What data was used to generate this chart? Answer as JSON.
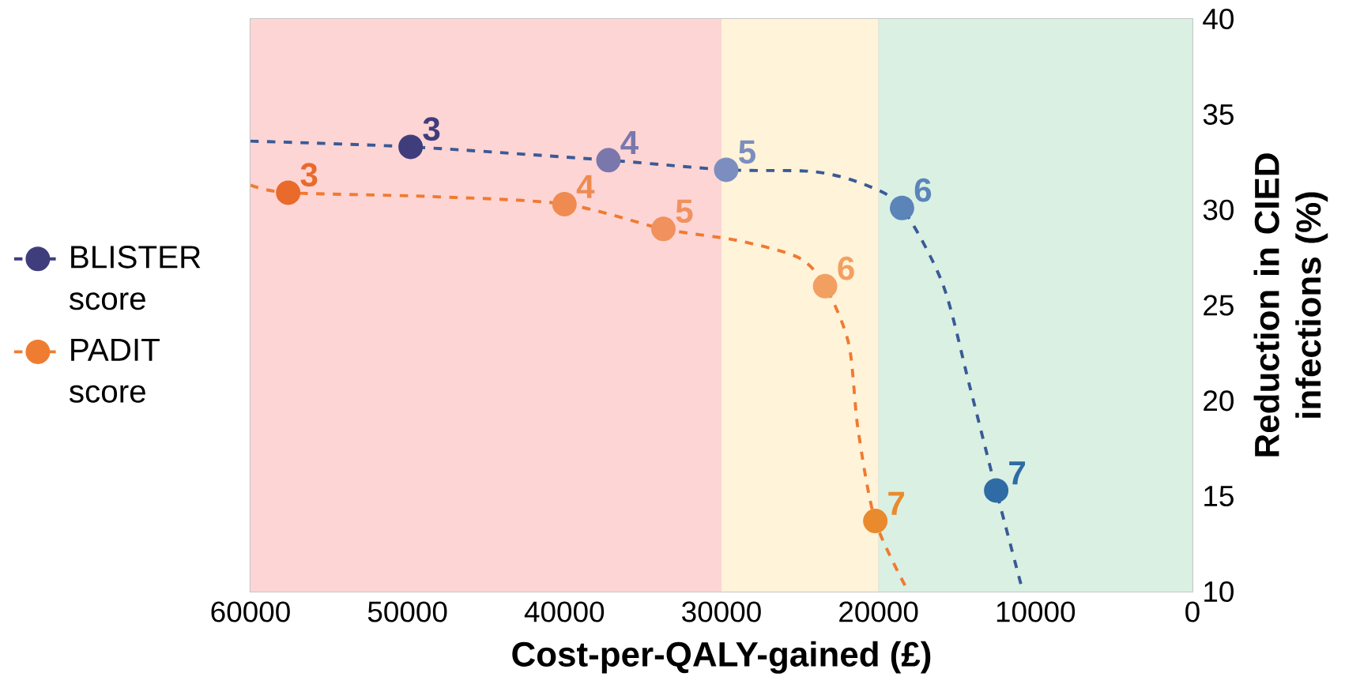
{
  "chart_data": {
    "type": "line",
    "xlabel": "Cost-per-QALY-gained  (£)",
    "ylabel": "Reduction in CIED infections (%)",
    "xlim": [
      60000,
      0
    ],
    "xticks": [
      60000,
      50000,
      40000,
      30000,
      20000,
      10000,
      0
    ],
    "ylim": [
      10,
      40
    ],
    "yticks": [
      10,
      15,
      20,
      25,
      30,
      35,
      40
    ],
    "grid": true,
    "legend": "left",
    "line_style": "dashed",
    "marker": "circle",
    "bands": [
      {
        "axis": "x",
        "from": 60000,
        "to": 30000,
        "color": "#fdd5d5"
      },
      {
        "axis": "x",
        "from": 30000,
        "to": 20000,
        "color": "#fff3d9"
      },
      {
        "axis": "x",
        "from": 20000,
        "to": 0,
        "color": "#d9f0e3"
      }
    ],
    "annotations": [
      {
        "text": "3",
        "x": 49800,
        "y": 33.3
      },
      {
        "text": "4",
        "x": 37200,
        "y": 32.6
      },
      {
        "text": "5",
        "x": 29700,
        "y": 32.1
      },
      {
        "text": "6",
        "x": 18500,
        "y": 30.1
      },
      {
        "text": "7",
        "x": 12500,
        "y": 15.3
      },
      {
        "text": "3",
        "x": 57600,
        "y": 30.9
      },
      {
        "text": "4",
        "x": 40000,
        "y": 30.3
      },
      {
        "text": "5",
        "x": 33700,
        "y": 29.0
      },
      {
        "text": "6",
        "x": 23400,
        "y": 26.0
      },
      {
        "text": "7",
        "x": 20200,
        "y": 13.7
      }
    ],
    "series": [
      {
        "marker": "none",
        "color": "#3a5a96",
        "x": [
          60000,
          49800,
          37200,
          29700,
          24100,
          20800,
          18500,
          15900,
          14200,
          12500,
          10800
        ],
        "values": [
          33.6,
          33.3,
          32.6,
          32.1,
          32.0,
          31.3,
          30.1,
          26.1,
          20.8,
          15.3,
          10
        ]
      },
      {
        "type": "scatter",
        "name": "BLISTER score",
        "color": "#3f3d7c",
        "x": [
          49800,
          37200,
          29700,
          18500,
          12500
        ],
        "values": [
          33.3,
          32.6,
          32.1,
          30.1,
          15.3
        ],
        "colors": [
          "#3f3d7c",
          "#7a77ad",
          "#7b8ebf",
          "#5b84b9",
          "#2f6ba4"
        ]
      },
      {
        "marker": "none",
        "color": "#f07a30",
        "x": [
          60000,
          57600,
          48600,
          40000,
          33700,
          29000,
          25100,
          23400,
          21900,
          21300,
          20200,
          18100
        ],
        "values": [
          31.3,
          30.9,
          30.7,
          30.3,
          29.0,
          28.4,
          27.5,
          26.0,
          23.0,
          18.5,
          13.7,
          10
        ]
      },
      {
        "type": "scatter",
        "name": "PADIT score",
        "color": "#ee7d31",
        "x": [
          57600,
          40000,
          33700,
          23400,
          20200
        ],
        "values": [
          30.9,
          30.3,
          29.0,
          26.0,
          13.7
        ],
        "colors": [
          "#e96a2a",
          "#ef8b50",
          "#f0915e",
          "#f2a062",
          "#e98a2d"
        ]
      }
    ]
  }
}
